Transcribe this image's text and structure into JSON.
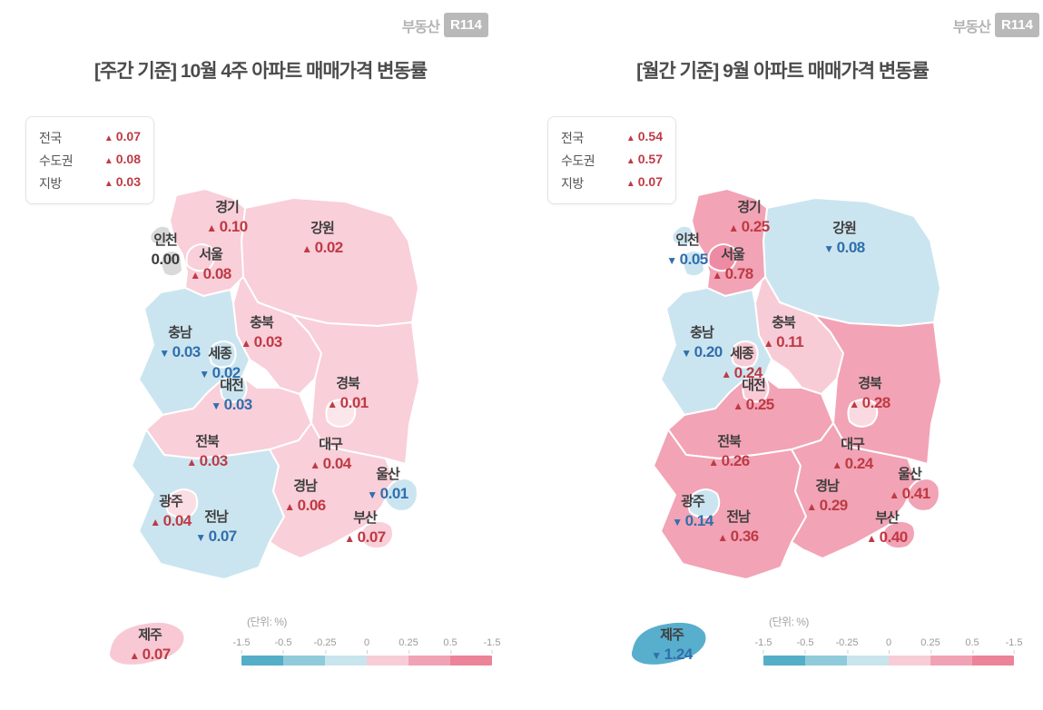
{
  "logo": {
    "prefix": "부동산",
    "badge": "R114"
  },
  "colors": {
    "up": "#bf3a44",
    "down": "#2f6fad",
    "neutral": "#3b3b3b"
  },
  "scale_colors": [
    "#55aec7",
    "#8fcbdb",
    "#c8e5ee",
    "#f8ccd7",
    "#f1a3b5",
    "#eb8399"
  ],
  "panels": [
    {
      "title": "[주간 기준] 10월 4주 아파트 매매가격 변동률",
      "summary": [
        {
          "label": "전국",
          "dir": "up",
          "value": "0.07"
        },
        {
          "label": "수도권",
          "dir": "up",
          "value": "0.08"
        },
        {
          "label": "지방",
          "dir": "up",
          "value": "0.03"
        }
      ],
      "regions": {
        "gyeonggi": {
          "label": "경기",
          "dir": "up",
          "value": "0.10",
          "fill": "#f9cfd9"
        },
        "gangwon": {
          "label": "강원",
          "dir": "up",
          "value": "0.02",
          "fill": "#f9cfd9"
        },
        "incheon": {
          "label": "인천",
          "dir": "none",
          "value": "0.00",
          "fill": "#d9d9d9"
        },
        "seoul": {
          "label": "서울",
          "dir": "up",
          "value": "0.08",
          "fill": "#f9cfd9"
        },
        "chungnam": {
          "label": "충남",
          "dir": "down",
          "value": "0.03",
          "fill": "#cbe5f0"
        },
        "chungbuk": {
          "label": "충북",
          "dir": "up",
          "value": "0.03",
          "fill": "#f9cfd9"
        },
        "sejong": {
          "label": "세종",
          "dir": "down",
          "value": "0.02",
          "fill": "#cbe5f0"
        },
        "daejeon": {
          "label": "대전",
          "dir": "down",
          "value": "0.03",
          "fill": "#cbe5f0"
        },
        "gyeongbuk": {
          "label": "경북",
          "dir": "up",
          "value": "0.01",
          "fill": "#f9cfd9"
        },
        "jeonbuk": {
          "label": "전북",
          "dir": "up",
          "value": "0.03",
          "fill": "#f9cfd9"
        },
        "daegu": {
          "label": "대구",
          "dir": "up",
          "value": "0.04",
          "fill": "#fbe6ea"
        },
        "ulsan": {
          "label": "울산",
          "dir": "down",
          "value": "0.01",
          "fill": "#cbe5f0"
        },
        "gyeongnam": {
          "label": "경남",
          "dir": "up",
          "value": "0.06",
          "fill": "#f9cfd9"
        },
        "gwangju": {
          "label": "광주",
          "dir": "up",
          "value": "0.04",
          "fill": "#fbdde4"
        },
        "jeonnam": {
          "label": "전남",
          "dir": "down",
          "value": "0.07",
          "fill": "#cbe5f0"
        },
        "busan": {
          "label": "부산",
          "dir": "up",
          "value": "0.07",
          "fill": "#f9cfd9"
        },
        "jeju": {
          "label": "제주",
          "dir": "up",
          "value": "0.07",
          "fill": "#f8c9d4"
        }
      },
      "legend": {
        "unit": "(단위:  %)",
        "ticks": [
          "-1.5",
          "-0.5",
          "-0.25",
          "0",
          "0.25",
          "0.5",
          "-1.5"
        ]
      }
    },
    {
      "title": "[월간 기준] 9월 아파트 매매가격 변동률",
      "summary": [
        {
          "label": "전국",
          "dir": "up",
          "value": "0.54"
        },
        {
          "label": "수도권",
          "dir": "up",
          "value": "0.57"
        },
        {
          "label": "지방",
          "dir": "up",
          "value": "0.07"
        }
      ],
      "regions": {
        "gyeonggi": {
          "label": "경기",
          "dir": "up",
          "value": "0.25",
          "fill": "#f2a3b5"
        },
        "gangwon": {
          "label": "강원",
          "dir": "down",
          "value": "0.08",
          "fill": "#cbe5f0"
        },
        "incheon": {
          "label": "인천",
          "dir": "down",
          "value": "0.05",
          "fill": "#cbe5f0"
        },
        "seoul": {
          "label": "서울",
          "dir": "up",
          "value": "0.78",
          "fill": "#ee8ba4"
        },
        "chungnam": {
          "label": "충남",
          "dir": "down",
          "value": "0.20",
          "fill": "#cbe5f0"
        },
        "chungbuk": {
          "label": "충북",
          "dir": "up",
          "value": "0.11",
          "fill": "#f8ccd7"
        },
        "sejong": {
          "label": "세종",
          "dir": "up",
          "value": "0.24",
          "fill": "#f8ccd7"
        },
        "daejeon": {
          "label": "대전",
          "dir": "up",
          "value": "0.25",
          "fill": "#f8ccd7"
        },
        "gyeongbuk": {
          "label": "경북",
          "dir": "up",
          "value": "0.28",
          "fill": "#f2a3b5"
        },
        "jeonbuk": {
          "label": "전북",
          "dir": "up",
          "value": "0.26",
          "fill": "#f2a3b5"
        },
        "daegu": {
          "label": "대구",
          "dir": "up",
          "value": "0.24",
          "fill": "#f9dae1"
        },
        "ulsan": {
          "label": "울산",
          "dir": "up",
          "value": "0.41",
          "fill": "#f2a3b5"
        },
        "gyeongnam": {
          "label": "경남",
          "dir": "up",
          "value": "0.29",
          "fill": "#f2a3b5"
        },
        "gwangju": {
          "label": "광주",
          "dir": "down",
          "value": "0.14",
          "fill": "#cbe5f0"
        },
        "jeonnam": {
          "label": "전남",
          "dir": "up",
          "value": "0.36",
          "fill": "#f2a3b5"
        },
        "busan": {
          "label": "부산",
          "dir": "up",
          "value": "0.40",
          "fill": "#f2a3b5"
        },
        "jeju": {
          "label": "제주",
          "dir": "down",
          "value": "1.24",
          "fill": "#58aecd"
        }
      },
      "legend": {
        "unit": "(단위:  %)",
        "ticks": [
          "-1.5",
          "-0.5",
          "-0.25",
          "0",
          "0.25",
          "0.5",
          "-1.5"
        ]
      }
    }
  ],
  "chart_data": [
    {
      "type": "heatmap",
      "subtype": "choropleth-map-of-south-korea",
      "title": "[주간 기준] 10월 4주 아파트 매매가격 변동률",
      "unit": "%",
      "summary": {
        "전국": 0.07,
        "수도권": 0.08,
        "지방": 0.03
      },
      "categories": [
        "경기",
        "강원",
        "인천",
        "서울",
        "충남",
        "충북",
        "세종",
        "대전",
        "경북",
        "전북",
        "대구",
        "울산",
        "경남",
        "광주",
        "전남",
        "부산",
        "제주"
      ],
      "values": [
        0.1,
        0.02,
        0.0,
        0.08,
        -0.03,
        0.03,
        -0.02,
        -0.03,
        0.01,
        0.03,
        0.04,
        -0.01,
        0.06,
        0.04,
        -0.07,
        0.07,
        0.07
      ],
      "scale_ticks_as_printed": [
        "-1.5",
        "-0.5",
        "-0.25",
        "0",
        "0.25",
        "0.5",
        "-1.5"
      ],
      "scale_range": [
        -1.5,
        1.5
      ],
      "legend_position": "bottom-right"
    },
    {
      "type": "heatmap",
      "subtype": "choropleth-map-of-south-korea",
      "title": "[월간 기준] 9월 아파트 매매가격 변동률",
      "unit": "%",
      "summary": {
        "전국": 0.54,
        "수도권": 0.57,
        "지방": 0.07
      },
      "categories": [
        "경기",
        "강원",
        "인천",
        "서울",
        "충남",
        "충북",
        "세종",
        "대전",
        "경북",
        "전북",
        "대구",
        "울산",
        "경남",
        "광주",
        "전남",
        "부산",
        "제주"
      ],
      "values": [
        0.25,
        -0.08,
        -0.05,
        0.78,
        -0.2,
        0.11,
        0.24,
        0.25,
        0.28,
        0.26,
        0.24,
        0.41,
        0.29,
        -0.14,
        0.36,
        0.4,
        -1.24
      ],
      "scale_ticks_as_printed": [
        "-1.5",
        "-0.5",
        "-0.25",
        "0",
        "0.25",
        "0.5",
        "-1.5"
      ],
      "scale_range": [
        -1.5,
        1.5
      ],
      "legend_position": "bottom-right"
    }
  ]
}
